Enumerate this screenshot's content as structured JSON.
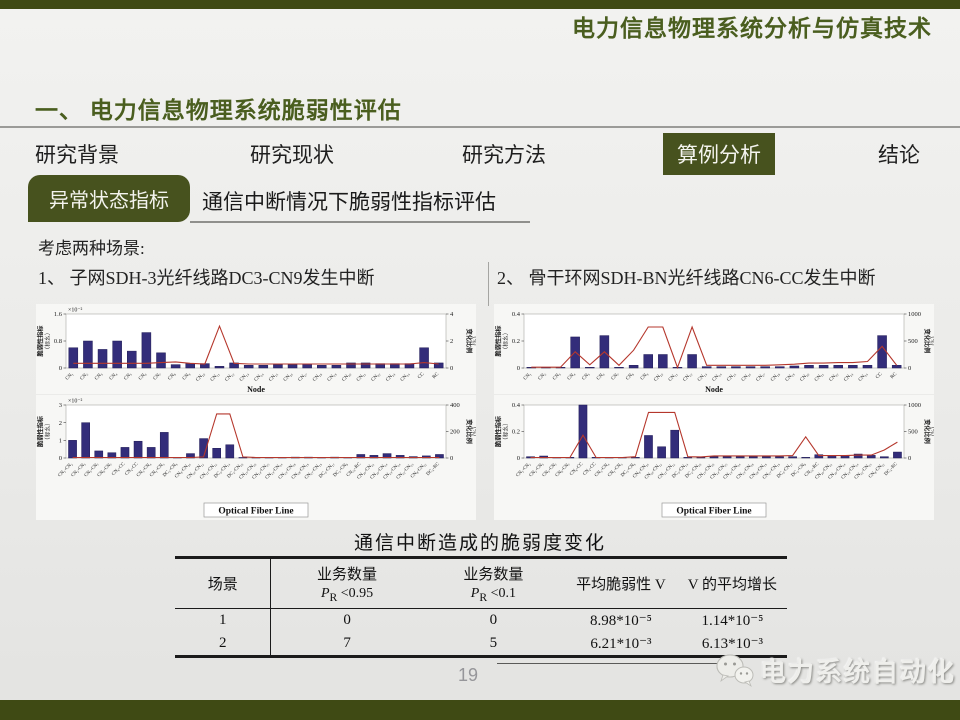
{
  "slide": {
    "header_title": "电力信息物理系统分析与仿真技术",
    "section_heading": "一、 电力信息物理系统脆弱性评估",
    "page_number": "19",
    "brand": "电力系统自动化"
  },
  "nav": {
    "items": [
      {
        "label": "研究背景",
        "active": false
      },
      {
        "label": "研究现状",
        "active": false
      },
      {
        "label": "研究方法",
        "active": false
      },
      {
        "label": "算例分析",
        "active": true
      },
      {
        "label": "结论",
        "active": false
      }
    ]
  },
  "topic": {
    "badge": "异常状态指标",
    "subtitle": "通信中断情况下脆弱性指标评估"
  },
  "scenarios": {
    "intro": "考虑两种场景:",
    "item1": "1、 子网SDH-3光纤线路DC3-CN9发生中断",
    "item2": "2、 骨干环网SDH-BN光纤线路CN6-CC发生中断"
  },
  "colors": {
    "olive": "#47521e",
    "heading_green": "#4a5e1f",
    "bar": "#332d7a",
    "bar_edge": "#1f1a55",
    "line": "#b5372c"
  },
  "chart_data": [
    {
      "name": "scenario1-node",
      "type": "bar+line",
      "xlabel": "Node",
      "xlabel_boxed": false,
      "left_axis": {
        "label": "脆弱性指标",
        "label2": "（标幺）",
        "min": 0,
        "max": 1.6,
        "ticks": [
          0,
          0.8,
          1.6
        ],
        "multiplier": "×10⁻²"
      },
      "right_axis": {
        "label": "变化比例",
        "label2": "（%）",
        "min": 0,
        "max": 4,
        "ticks": [
          0,
          2,
          4
        ]
      },
      "categories": [
        "CN₁",
        "CN₂",
        "CN₃",
        "CN₄",
        "CN₅",
        "CN₆",
        "CN₇",
        "CN₈",
        "CN₉",
        "CN₁₀",
        "CN₁₁",
        "CN₁₂",
        "CN₁₃",
        "CN₁₄",
        "CN₁₅",
        "CN₁₆",
        "CN₁₇",
        "CN₁₈",
        "CN₁₉",
        "CN₂₀",
        "CN₂₁",
        "CN₂₂",
        "CN₂₃",
        "CN₂₄",
        "CC",
        "RC"
      ],
      "bars": [
        0.6,
        0.8,
        0.55,
        0.8,
        0.5,
        1.05,
        0.45,
        0.1,
        0.13,
        0.13,
        0.05,
        0.15,
        0.08,
        0.08,
        0.1,
        0.1,
        0.12,
        0.08,
        0.08,
        0.15,
        0.15,
        0.13,
        0.13,
        0.13,
        0.6,
        0.15
      ],
      "line": [
        0.35,
        0.35,
        0.35,
        0.35,
        0.35,
        0.35,
        0.4,
        0.45,
        0.35,
        0.3,
        3.1,
        0.35,
        0.3,
        0.3,
        0.3,
        0.3,
        0.3,
        0.3,
        0.3,
        0.3,
        0.3,
        0.3,
        0.3,
        0.3,
        0.4,
        0.3
      ]
    },
    {
      "name": "scenario1-fiber",
      "type": "bar+line",
      "xlabel": "Optical Fiber Line",
      "xlabel_boxed": true,
      "left_axis": {
        "label": "脆弱性指标",
        "label2": "（标幺）",
        "min": 0,
        "max": 3,
        "ticks": [
          0,
          1,
          2,
          3
        ],
        "multiplier": "×10⁻²"
      },
      "right_axis": {
        "label": "变化比例",
        "label2": "（%）",
        "min": 0,
        "max": 400,
        "ticks": [
          0,
          200,
          400
        ]
      },
      "categories": [
        "CN₁-CN₂",
        "CN₂-CN₅",
        "CN₅-CN₇",
        "CN₆-CN₇",
        "CN₆-CC",
        "CN₄-CC",
        "CN₃-CN₄",
        "CN₁-CN₃",
        "DC₃-CN₉",
        "CN₉-CN₁₀",
        "CN₁₀-CN₁₂",
        "CN₁₁-CN₁₂",
        "DC₄-CN₁₃",
        "DC₂-CN₁₆",
        "CN₁₅-CN₁₆",
        "CN₁₄-CN₁₅",
        "CN₁₃-CN₁₄",
        "CN₁₃-CN₁₈",
        "CN₁₈-CN₁₉",
        "CN₁₇-CN₁₉",
        "DC₄-CN₁₇",
        "DC₁-CN₈",
        "CN₂₁-RC",
        "CN₂₀-CN₂₁",
        "CN₂₀-CN₂₄",
        "CN₂₃-CN₂₄",
        "CN₂₂-CN₂₃",
        "CN₈-CN₂₂",
        "DC₁-RC"
      ],
      "bars": [
        1.0,
        2.0,
        0.4,
        0.3,
        0.6,
        0.95,
        0.6,
        1.45,
        0.03,
        0.25,
        1.1,
        0.55,
        0.75,
        0.03,
        0.02,
        0.02,
        0.02,
        0.05,
        0.05,
        0.03,
        0.05,
        0.03,
        0.2,
        0.15,
        0.25,
        0.15,
        0.08,
        0.12,
        0.2
      ],
      "line": [
        4,
        4,
        4,
        4,
        4,
        4,
        4,
        4,
        4,
        4,
        8,
        333,
        333,
        8,
        4,
        4,
        4,
        4,
        4,
        4,
        4,
        4,
        4,
        4,
        4,
        4,
        4,
        4,
        4
      ]
    },
    {
      "name": "scenario2-node",
      "type": "bar+line",
      "xlabel": "Node",
      "xlabel_boxed": false,
      "left_axis": {
        "label": "脆弱性指标",
        "label2": "（标幺）",
        "min": 0,
        "max": 0.4,
        "ticks": [
          0,
          0.2,
          0.4
        ],
        "multiplier": ""
      },
      "right_axis": {
        "label": "变化比例",
        "label2": "（%）",
        "min": 0,
        "max": 1000,
        "ticks": [
          0,
          500,
          1000
        ]
      },
      "categories": [
        "CN₁",
        "CN₂",
        "CN₃",
        "CN₄",
        "CN₅",
        "CN₆",
        "CN₇",
        "CN₈",
        "CN₉",
        "CN₁₀",
        "CN₁₁",
        "CN₁₂",
        "CN₁₃",
        "CN₁₄",
        "CN₁₅",
        "CN₁₆",
        "CN₁₇",
        "CN₁₈",
        "CN₁₉",
        "CN₂₀",
        "CN₂₁",
        "CN₂₂",
        "CN₂₃",
        "CN₂₄",
        "CC",
        "RC"
      ],
      "bars": [
        0.005,
        0.005,
        0.005,
        0.23,
        0.005,
        0.24,
        0.005,
        0.02,
        0.1,
        0.1,
        0.005,
        0.1,
        0.01,
        0.01,
        0.01,
        0.01,
        0.01,
        0.01,
        0.015,
        0.02,
        0.02,
        0.02,
        0.02,
        0.02,
        0.24,
        0.02
      ],
      "line": [
        15,
        15,
        15,
        300,
        60,
        300,
        50,
        330,
        760,
        760,
        10,
        760,
        50,
        50,
        50,
        50,
        50,
        60,
        70,
        90,
        90,
        100,
        100,
        120,
        400,
        50
      ]
    },
    {
      "name": "scenario2-fiber",
      "type": "bar+line",
      "xlabel": "Optical Fiber Line",
      "xlabel_boxed": true,
      "left_axis": {
        "label": "脆弱性指标",
        "label2": "（标幺）",
        "min": 0,
        "max": 0.4,
        "ticks": [
          0,
          0.2,
          0.4
        ],
        "multiplier": ""
      },
      "right_axis": {
        "label": "变化比例",
        "label2": "（%）",
        "min": 0,
        "max": 1000,
        "ticks": [
          0,
          500,
          1000
        ]
      },
      "categories": [
        "CN₁-CN₂",
        "CN₂-CN₅",
        "CN₅-CN₇",
        "CN₆-CN₇",
        "CN₆-CC",
        "CN₄-CC",
        "CN₃-CN₄",
        "CN₁-CN₃",
        "DC₃-CN₉",
        "CN₉-CN₁₀",
        "CN₁₀-CN₁₂",
        "CN₁₁-CN₁₂",
        "DC₄-CN₁₃",
        "DC₂-CN₁₆",
        "CN₁₅-CN₁₆",
        "CN₁₄-CN₁₅",
        "CN₁₃-CN₁₄",
        "CN₁₃-CN₁₈",
        "CN₁₈-CN₁₉",
        "CN₁₇-CN₁₉",
        "DC₄-CN₁₇",
        "DC₁-CN₈",
        "CN₂₁-RC",
        "CN₂₀-CN₂₁",
        "CN₂₀-CN₂₄",
        "CN₂₃-CN₂₄",
        "CN₂₂-CN₂₃",
        "CN₈-CN₂₂",
        "DC₁-RC"
      ],
      "bars": [
        0.01,
        0.015,
        0.005,
        0.005,
        0.4,
        0.005,
        0.005,
        0.005,
        0.005,
        0.17,
        0.085,
        0.21,
        0.005,
        0.005,
        0.01,
        0.01,
        0.01,
        0.01,
        0.01,
        0.01,
        0.01,
        0.005,
        0.025,
        0.02,
        0.02,
        0.03,
        0.02,
        0.01,
        0.045
      ],
      "line": [
        10,
        10,
        10,
        10,
        430,
        10,
        10,
        10,
        25,
        860,
        860,
        860,
        25,
        20,
        40,
        40,
        40,
        40,
        40,
        40,
        45,
        400,
        45,
        45,
        45,
        55,
        55,
        150,
        300
      ]
    }
  ],
  "table": {
    "title": "通信中断造成的脆弱度变化",
    "headers": {
      "col1": "场景",
      "col2_line1": "业务数量",
      "col2_p": "P",
      "col2_sub": "R",
      "col2_cond": " <0.95",
      "col3_line1": "业务数量",
      "col3_p": "P",
      "col3_sub": "R",
      "col3_cond": " <0.1",
      "col4": "平均脆弱性 V",
      "col5": "V 的平均增长"
    },
    "rows": [
      [
        "1",
        "0",
        "0",
        "8.98*10⁻⁵",
        "1.14*10⁻⁵"
      ],
      [
        "2",
        "7",
        "5",
        "6.21*10⁻³",
        "6.13*10⁻³"
      ]
    ]
  }
}
